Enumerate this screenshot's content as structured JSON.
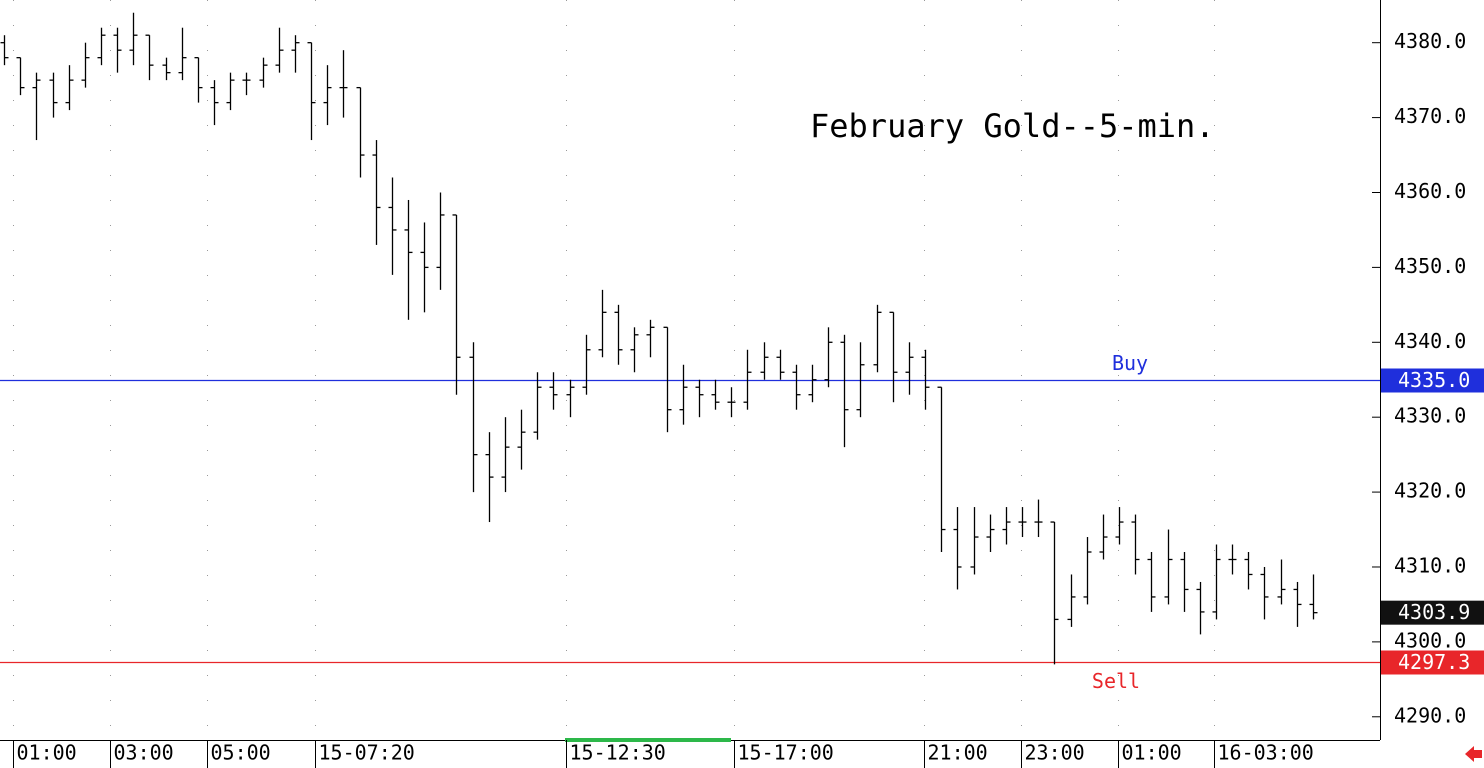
{
  "chart_data": {
    "type": "ohlc",
    "title": "February Gold--5-min.",
    "color": "#000000",
    "open": [
      4380,
      4378,
      4374,
      4375,
      4372,
      4375,
      4378,
      4381,
      4379,
      4381,
      4377,
      4376,
      4378,
      4374,
      4372,
      4375,
      4375,
      4377,
      4379,
      4380,
      4372,
      4374,
      4374,
      4365,
      4358,
      4355,
      4352,
      4350,
      4357,
      4338,
      4325,
      4322,
      4326,
      4328,
      4334,
      4333,
      4334,
      4339,
      4344,
      4339,
      4341,
      4342,
      4331,
      4334,
      4333,
      4332,
      4332,
      4336,
      4338,
      4336,
      4333,
      4335,
      4340,
      4331,
      4337,
      4344,
      4336,
      4338,
      4334,
      4315,
      4310,
      4314,
      4315,
      4316,
      4316,
      4316,
      4303,
      4306,
      4312,
      4314,
      4316,
      4311,
      4306,
      4311,
      4307,
      4304,
      4311,
      4311,
      4309,
      4306,
      4307,
      4305
    ],
    "high": [
      4381,
      4378,
      4376,
      4376,
      4377,
      4380,
      4382,
      4382,
      4384,
      4381,
      4378,
      4382,
      4378,
      4375,
      4376,
      4376,
      4378,
      4382,
      4381,
      4380,
      4377,
      4379,
      4374,
      4367,
      4362,
      4359,
      4356,
      4360,
      4357,
      4340,
      4328,
      4330,
      4331,
      4336,
      4336,
      4335,
      4341,
      4347,
      4345,
      4342,
      4343,
      4342,
      4337,
      4335,
      4335,
      4334,
      4339,
      4340,
      4339,
      4337,
      4337,
      4342,
      4341,
      4340,
      4345,
      4344,
      4340,
      4339,
      4334,
      4318,
      4318,
      4317,
      4318,
      4318,
      4319,
      4316,
      4309,
      4314,
      4317,
      4318,
      4317,
      4312,
      4315,
      4312,
      4308,
      4313,
      4313,
      4312,
      4310,
      4311,
      4308,
      4309
    ],
    "low": [
      4377,
      4373,
      4367,
      4370,
      4371,
      4374,
      4377,
      4376,
      4377,
      4375,
      4375,
      4375,
      4372,
      4369,
      4371,
      4373,
      4374,
      4376,
      4376,
      4367,
      4369,
      4370,
      4362,
      4353,
      4349,
      4343,
      4344,
      4347,
      4333,
      4320,
      4316,
      4320,
      4323,
      4327,
      4331,
      4330,
      4333,
      4338,
      4337,
      4336,
      4338,
      4328,
      4329,
      4330,
      4331,
      4330,
      4331,
      4335,
      4335,
      4331,
      4332,
      4334,
      4326,
      4330,
      4336,
      4332,
      4333,
      4331,
      4312,
      4307,
      4309,
      4312,
      4313,
      4314,
      4314,
      4297,
      4302,
      4305,
      4311,
      4313,
      4309,
      4304,
      4305,
      4304,
      4301,
      4303,
      4309,
      4307,
      4303,
      4305,
      4302,
      4303
    ],
    "close": [
      4378,
      4374,
      4375,
      4372,
      4375,
      4378,
      4381,
      4379,
      4381,
      4377,
      4376,
      4378,
      4374,
      4372,
      4375,
      4375,
      4377,
      4379,
      4380,
      4372,
      4374,
      4374,
      4365,
      4358,
      4355,
      4352,
      4350,
      4357,
      4338,
      4325,
      4322,
      4326,
      4328,
      4334,
      4333,
      4334,
      4339,
      4344,
      4339,
      4341,
      4342,
      4331,
      4334,
      4333,
      4332,
      4332,
      4336,
      4338,
      4336,
      4333,
      4335,
      4340,
      4331,
      4337,
      4344,
      4336,
      4338,
      4334,
      4315,
      4310,
      4314,
      4315,
      4316,
      4316,
      4316,
      4303,
      4306,
      4312,
      4314,
      4316,
      4311,
      4306,
      4311,
      4307,
      4304,
      4311,
      4311,
      4309,
      4306,
      4307,
      4305,
      4303.9
    ],
    "ylim": [
      4286.9,
      4385.7
    ],
    "yticks": [
      {
        "value": 4290,
        "label": "4290.0"
      },
      {
        "value": 4300,
        "label": "4300.0"
      },
      {
        "value": 4310,
        "label": "4310.0"
      },
      {
        "value": 4320,
        "label": "4320.0"
      },
      {
        "value": 4330,
        "label": "4330.0"
      },
      {
        "value": 4340,
        "label": "4340.0"
      },
      {
        "value": 4350,
        "label": "4350.0"
      },
      {
        "value": 4360,
        "label": "4360.0"
      },
      {
        "value": 4370,
        "label": "4370.0"
      },
      {
        "value": 4380,
        "label": "4380.0"
      }
    ],
    "xlim": [
      -0.25,
      85.15
    ],
    "xticks": [
      {
        "value": 0.55,
        "label": "01:00"
      },
      {
        "value": 6.55,
        "label": "03:00"
      },
      {
        "value": 12.55,
        "label": "05:00"
      },
      {
        "value": 19.25,
        "label": "15-07:20"
      },
      {
        "value": 34.75,
        "label": "15-12:30"
      },
      {
        "value": 45.15,
        "label": "15-17:00"
      },
      {
        "value": 56.95,
        "label": "21:00"
      },
      {
        "value": 62.95,
        "label": "23:00"
      },
      {
        "value": 68.95,
        "label": "01:00"
      },
      {
        "value": 74.85,
        "label": "16-03:00"
      }
    ],
    "grid": true,
    "levels": [
      {
        "name": "Buy",
        "value": 4335,
        "label": "4335.0",
        "color": "#1f2fdc"
      },
      {
        "name": "Sell",
        "value": 4297.3,
        "label": "4297.3",
        "color": "#e8262a"
      }
    ]
  }
}
